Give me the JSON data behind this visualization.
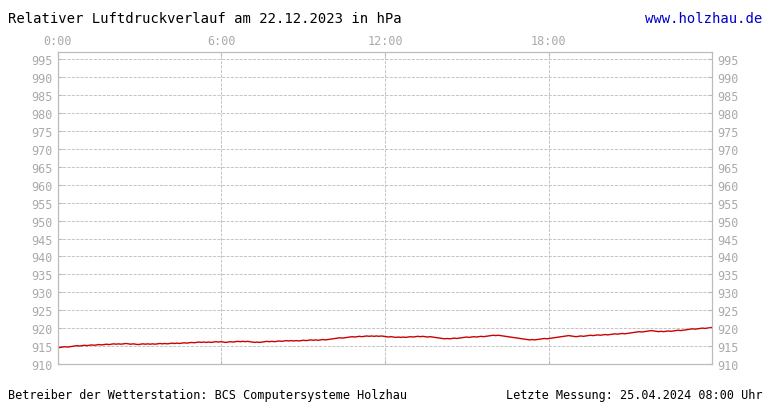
{
  "title": "Relativer Luftdruckverlauf am 22.12.2023 in hPa",
  "url_text": "www.holzhau.de",
  "footer_left": "Betreiber der Wetterstation: BCS Computersysteme Holzhau",
  "footer_right": "Letzte Messung: 25.04.2024 08:00 Uhr",
  "ylim": [
    910,
    997
  ],
  "yticks": [
    910,
    915,
    920,
    925,
    930,
    935,
    940,
    945,
    950,
    955,
    960,
    965,
    970,
    975,
    980,
    985,
    990,
    995
  ],
  "xtick_positions": [
    0,
    360,
    720,
    1080
  ],
  "xtick_labels": [
    "0:00",
    "6:00",
    "12:00",
    "18:00"
  ],
  "total_minutes": 1440,
  "line_color": "#cc0000",
  "grid_color": "#bbbbbb",
  "background_color": "#ffffff",
  "text_color": "#aaaaaa",
  "url_color": "#0000cc",
  "title_fontsize": 10,
  "footer_fontsize": 8.5,
  "tick_fontsize": 8.5,
  "pressure_data": [
    914.5,
    914.6,
    914.7,
    914.8,
    914.7,
    914.8,
    914.9,
    915.0,
    915.1,
    915.0,
    915.1,
    915.2,
    915.1,
    915.2,
    915.3,
    915.2,
    915.3,
    915.4,
    915.3,
    915.4,
    915.5,
    915.4,
    915.5,
    915.6,
    915.5,
    915.6,
    915.5,
    915.6,
    915.7,
    915.6,
    915.5,
    915.6,
    915.5,
    915.4,
    915.5,
    915.6,
    915.5,
    915.6,
    915.5,
    915.6,
    915.5,
    915.6,
    915.7,
    915.6,
    915.7,
    915.6,
    915.7,
    915.8,
    915.7,
    915.8,
    915.7,
    915.8,
    915.9,
    915.8,
    915.9,
    916.0,
    915.9,
    916.0,
    916.1,
    916.0,
    916.1,
    916.0,
    916.1,
    916.0,
    916.1,
    916.2,
    916.1,
    916.2,
    916.1,
    916.0,
    916.1,
    916.2,
    916.1,
    916.2,
    916.3,
    916.2,
    916.3,
    916.2,
    916.3,
    916.2,
    916.1,
    916.0,
    916.1,
    916.0,
    916.1,
    916.2,
    916.3,
    916.2,
    916.3,
    916.2,
    916.3,
    916.4,
    916.3,
    916.4,
    916.5,
    916.4,
    916.5,
    916.4,
    916.5,
    916.4,
    916.5,
    916.6,
    916.5,
    916.6,
    916.7,
    916.6,
    916.7,
    916.6,
    916.7,
    916.8,
    916.7,
    916.8,
    916.9,
    917.0,
    917.1,
    917.2,
    917.3,
    917.2,
    917.3,
    917.4,
    917.5,
    917.6,
    917.5,
    917.6,
    917.7,
    917.6,
    917.7,
    917.8,
    917.7,
    917.8,
    917.7,
    917.8,
    917.7,
    917.8,
    917.7,
    917.6,
    917.5,
    917.6,
    917.5,
    917.4,
    917.5,
    917.4,
    917.5,
    917.4,
    917.5,
    917.6,
    917.5,
    917.6,
    917.7,
    917.6,
    917.7,
    917.6,
    917.5,
    917.6,
    917.5,
    917.4,
    917.3,
    917.2,
    917.1,
    917.0,
    917.1,
    917.0,
    917.1,
    917.2,
    917.1,
    917.2,
    917.3,
    917.4,
    917.5,
    917.4,
    917.5,
    917.6,
    917.5,
    917.6,
    917.7,
    917.6,
    917.7,
    917.8,
    917.9,
    918.0,
    917.9,
    918.0,
    917.9,
    917.8,
    917.7,
    917.6,
    917.5,
    917.4,
    917.3,
    917.2,
    917.1,
    917.0,
    916.9,
    916.8,
    916.7,
    916.8,
    916.7,
    916.8,
    916.9,
    917.0,
    917.1,
    917.0,
    917.1,
    917.2,
    917.3,
    917.4,
    917.5,
    917.6,
    917.7,
    917.8,
    917.9,
    917.8,
    917.7,
    917.6,
    917.7,
    917.8,
    917.7,
    917.8,
    917.9,
    918.0,
    917.9,
    918.0,
    918.1,
    918.0,
    918.1,
    918.2,
    918.1,
    918.2,
    918.3,
    918.4,
    918.3,
    918.4,
    918.5,
    918.4,
    918.5,
    918.6,
    918.7,
    918.8,
    918.9,
    919.0,
    918.9,
    919.0,
    919.1,
    919.2,
    919.3,
    919.2,
    919.1,
    919.0,
    919.1,
    919.0,
    919.1,
    919.2,
    919.1,
    919.2,
    919.3,
    919.4,
    919.3,
    919.4,
    919.5,
    919.6,
    919.7,
    919.8,
    919.7,
    919.8,
    919.9,
    920.0,
    919.9,
    920.0,
    920.1,
    920.2
  ]
}
